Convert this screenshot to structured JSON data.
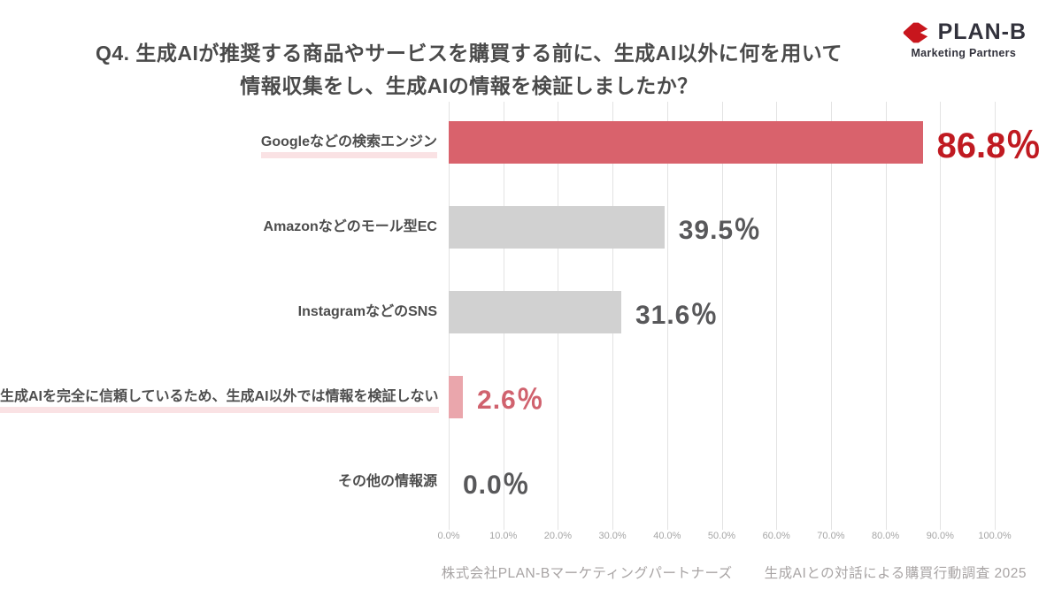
{
  "header": {
    "title_line1": "Q4. 生成AIが推奨する商品やサービスを購買する前に、生成AI以外に何を用いて",
    "title_line2": "情報収集をし、生成AIの情報を検証しましたか？",
    "logo": {
      "brand": "PLAN-B",
      "subtitle": "Marketing Partners",
      "icon": "plan-b-double-arrow-icon",
      "icon_color": "#c8161d",
      "text_color": "#32323c"
    }
  },
  "chart_data": {
    "type": "bar",
    "orientation": "horizontal",
    "title": "Q4. 生成AIが推奨する商品やサービスを購買する前に、生成AI以外に何を用いて情報収集をし、生成AIの情報を検証しましたか？",
    "categories": [
      "Googleなどの検索エンジン",
      "Amazonなどのモール型EC",
      "InstagramなどのSNS",
      "生成AIを完全に信頼しているため、生成AI以外では情報を検証しない",
      "その他の情報源"
    ],
    "values": [
      86.8,
      39.5,
      31.6,
      2.6,
      0.0
    ],
    "value_labels": [
      "86.8％",
      "39.5％",
      "31.6％",
      "2.6％",
      "0.0％"
    ],
    "bar_colors": [
      "#d9626c",
      "#d1d1d1",
      "#d1d1d1",
      "#eaa6ac",
      "none"
    ],
    "value_label_colors": [
      "#c01a21",
      "#58585a",
      "#58585a",
      "#d0626e",
      "#58585a"
    ],
    "emphasized_rows": [
      0,
      3
    ],
    "highlight_underline_color": "#fae2e4",
    "xlim": [
      0,
      100
    ],
    "x_ticks": [
      "0.0%",
      "10.0%",
      "20.0%",
      "30.0%",
      "40.0%",
      "50.0%",
      "60.0%",
      "70.0%",
      "80.0%",
      "90.0%",
      "100.0%"
    ],
    "grid": true,
    "gridline_color": "#e3e3e3",
    "legend": false,
    "xlabel": "",
    "ylabel": ""
  },
  "footer": {
    "source_left": "株式会社PLAN-Bマーケティングパートナーズ",
    "source_right": "生成AIとの対話による購買行動調査 2025"
  }
}
